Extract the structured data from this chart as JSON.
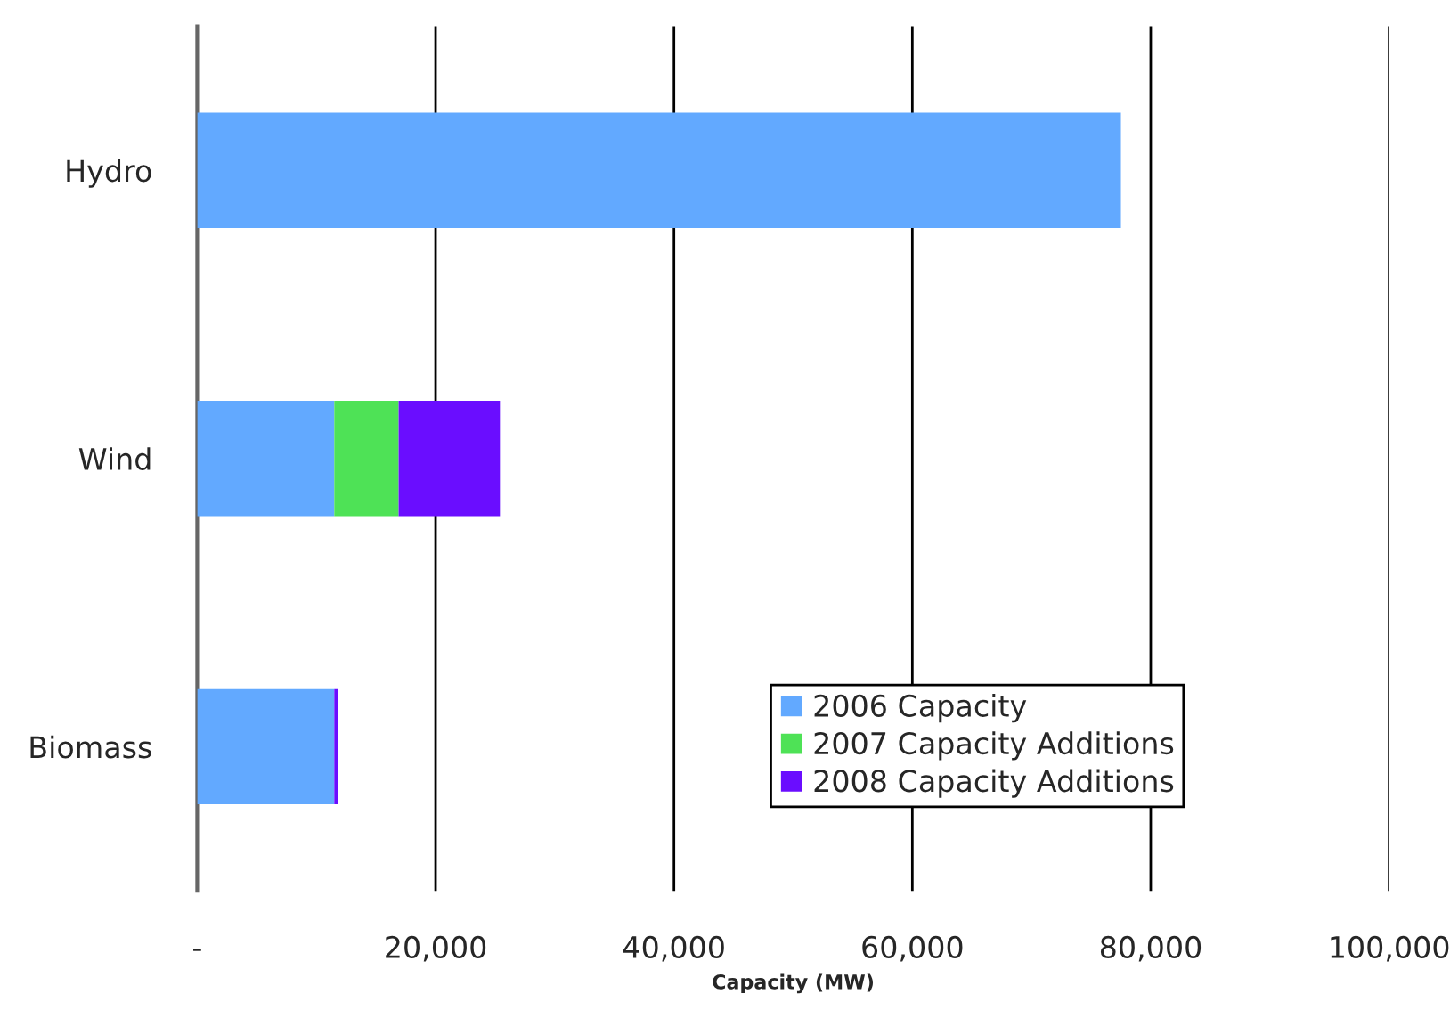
{
  "chart_data": {
    "type": "bar",
    "orientation": "horizontal",
    "stacked": true,
    "xlabel": "Capacity (MW)",
    "categories": [
      "Hydro",
      "Wind",
      "Biomass"
    ],
    "series": [
      {
        "name": "2006 Capacity",
        "color": "#62a9ff",
        "values": [
          77500,
          11500,
          11500
        ]
      },
      {
        "name": "2007 Capacity Additions",
        "color": "#4ee256",
        "values": [
          null,
          5400,
          null
        ]
      },
      {
        "name": "2008 Capacity Additions",
        "color": "#6a0dff",
        "values": [
          null,
          8500,
          300
        ]
      }
    ],
    "xlim": [
      0,
      100000
    ],
    "xticks": [
      {
        "value": 0,
        "label": "-"
      },
      {
        "value": 20000,
        "label": "20,000"
      },
      {
        "value": 40000,
        "label": "40,000"
      },
      {
        "value": 60000,
        "label": "60,000"
      },
      {
        "value": 80000,
        "label": "80,000"
      },
      {
        "value": 100000,
        "label": "100,000"
      }
    ],
    "grid": "x",
    "legend": "bottom right"
  }
}
